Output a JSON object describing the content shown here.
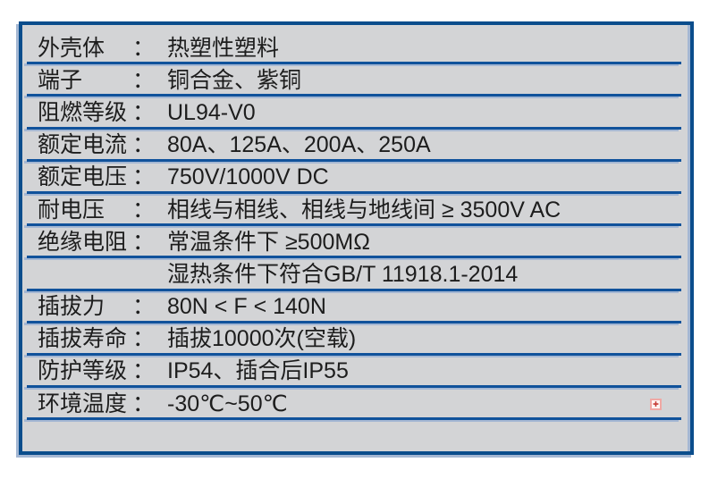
{
  "table": {
    "background": "#d3d4d6",
    "border_color": "#0a4d8c",
    "separator_color": "#10529b",
    "separator_shadow_color": "#a4b7d3",
    "text_color": "#1d1d1d",
    "colon_char": "：",
    "rows": [
      {
        "label": "外壳体",
        "value": "热塑性塑料"
      },
      {
        "label": "端子",
        "value": "铜合金、紫铜"
      },
      {
        "label": "阻燃等级",
        "value": "UL94-V0"
      },
      {
        "label": "额定电流",
        "value": "80A、125A、200A、250A"
      },
      {
        "label": "额定电压",
        "value": "750V/1000V DC"
      },
      {
        "label": "耐电压",
        "value": "相线与相线、相线与地线间 ≥ 3500V AC"
      },
      {
        "label": "绝缘电阻",
        "value": "常温条件下 ≥500MΩ"
      },
      {
        "label": "",
        "value": "湿热条件下符合GB/T 11918.1-2014"
      },
      {
        "label": "插拔力",
        "value": "80N < F < 140N"
      },
      {
        "label": "插拔寿命",
        "value": "插拔10000次(空载)"
      },
      {
        "label": "防护等级",
        "value": "IP54、插合后IP55"
      },
      {
        "label": "环境温度",
        "value": "-30℃~50℃"
      }
    ]
  },
  "marker": {
    "glyph": "✚",
    "color": "#c63a34",
    "border_color": "#f0a8a4"
  }
}
